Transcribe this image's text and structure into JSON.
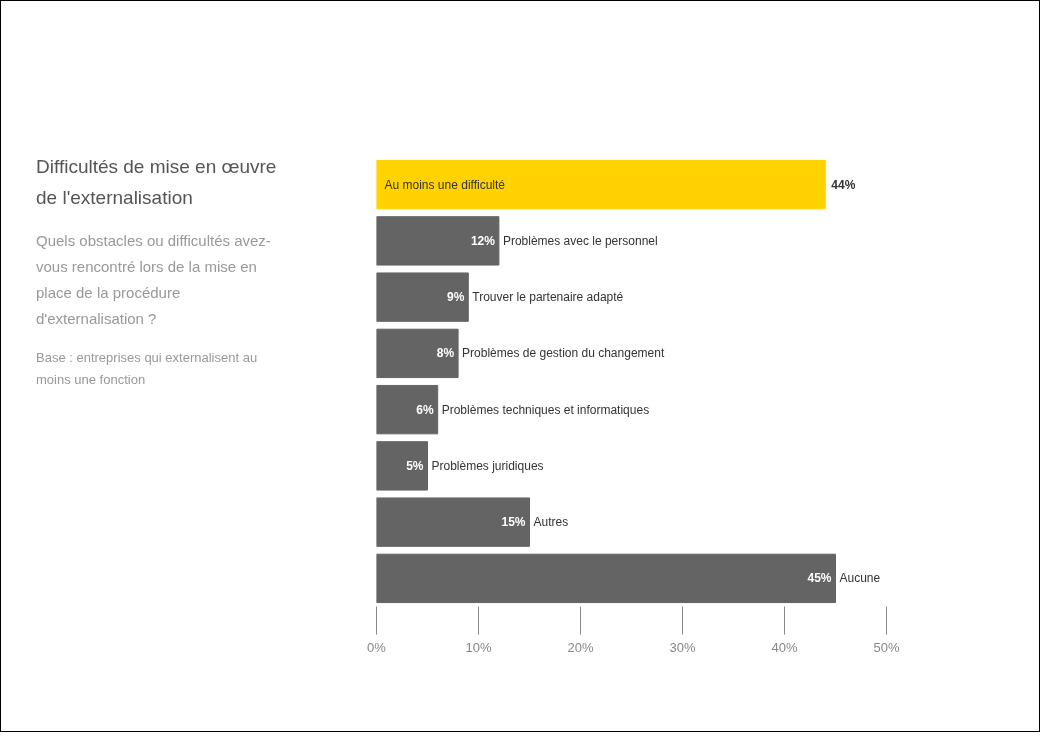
{
  "chart_data": {
    "type": "bar",
    "orientation": "horizontal",
    "title": "Difficultés de mise en œuvre de l'externalisation",
    "subtitle": "Quels obstacles ou difficultés avez-vous rencontré lors de la mise en place de la procédure d'externalisation ?",
    "annotations": [
      "Base : entreprises qui externalisent au moins une fonction"
    ],
    "categories": [
      "Au moins une difficulté",
      "Problèmes avec le personnel",
      "Trouver le partenaire adapté",
      "Problèmes de gestion du changement",
      "Problèmes techniques et informatiques",
      "Problèmes juridiques",
      "Autres",
      "Aucune"
    ],
    "values": [
      44,
      12,
      9,
      8,
      6,
      5,
      15,
      45
    ],
    "value_labels": [
      "44%",
      "12%",
      "9%",
      "8%",
      "6%",
      "5%",
      "15%",
      "45%"
    ],
    "colors": [
      "#ffd200",
      "#646464",
      "#646464",
      "#646464",
      "#646464",
      "#646464",
      "#646464",
      "#646464"
    ],
    "xlim": [
      0,
      50
    ],
    "xticks": [
      {
        "value": 0,
        "label": "0%"
      },
      {
        "value": 10,
        "label": "10%"
      },
      {
        "value": 20,
        "label": "20%"
      },
      {
        "value": 30,
        "label": "30%"
      },
      {
        "value": 40,
        "label": "40%"
      },
      {
        "value": 50,
        "label": "50%"
      }
    ],
    "grid": false
  }
}
